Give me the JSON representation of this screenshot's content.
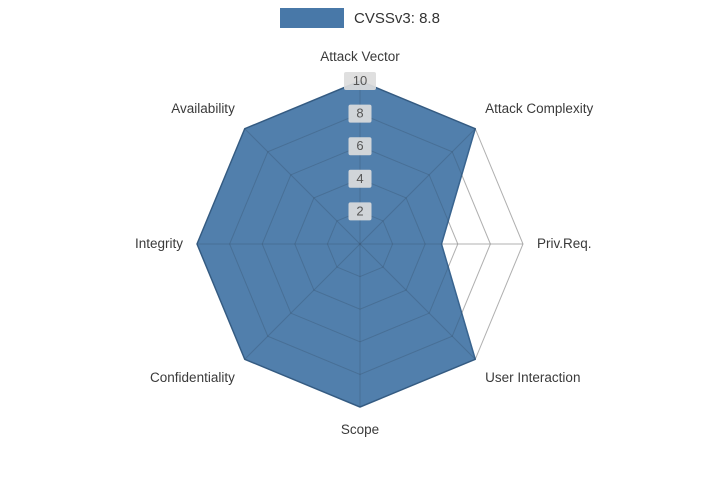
{
  "chart_data": {
    "type": "radar",
    "title": "",
    "legend": "CVSSv3: 8.8",
    "categories": [
      "Attack Vector",
      "Attack Complexity",
      "Priv.Req.",
      "User Interaction",
      "Scope",
      "Confidentiality",
      "Integrity",
      "Availability"
    ],
    "series": [
      {
        "name": "CVSSv3: 8.8",
        "values": [
          10,
          10,
          5,
          10,
          10,
          10,
          10,
          10
        ]
      }
    ],
    "ticks": [
      2,
      4,
      6,
      8,
      10
    ],
    "min": 0,
    "max": 10,
    "grid": true,
    "legend_position": "top-center",
    "fill_color": "#4878a8",
    "stroke_color": "#39648f",
    "grid_color": "#c8c8c8",
    "label_color": "#3a3a3a",
    "tick_chip_color": "#dcdcdc",
    "tick_text_color": "#555555"
  }
}
